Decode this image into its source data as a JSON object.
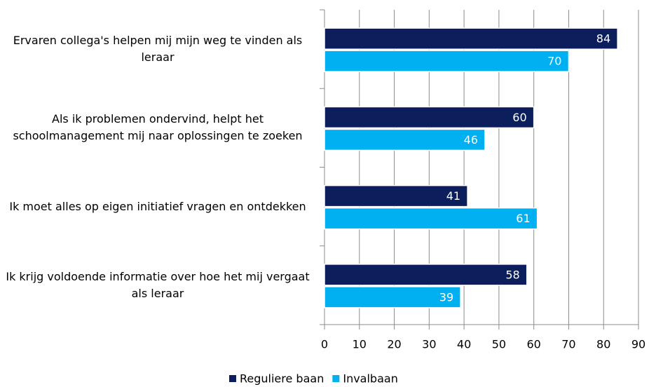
{
  "chart_data": {
    "type": "barh",
    "categories": [
      "Ervaren collega's helpen mij mijn weg te vinden als leraar",
      "Als ik problemen ondervind, helpt het schoolmanagement mij naar oplossingen te zoeken",
      "Ik moet alles op eigen initiatief vragen en ontdekken",
      "Ik krijg voldoende informatie over hoe het mij vergaat als leraar"
    ],
    "series": [
      {
        "name": "Reguliere baan",
        "color": "#0c1f5c",
        "values": [
          84,
          60,
          41,
          58
        ]
      },
      {
        "name": "Invalbaan",
        "color": "#00b0f0",
        "values": [
          70,
          46,
          61,
          39
        ]
      }
    ],
    "xlim": [
      0,
      90
    ],
    "xticks": [
      0,
      10,
      20,
      30,
      40,
      50,
      60,
      70,
      80,
      90
    ],
    "grid": true,
    "legend": "bottom"
  }
}
